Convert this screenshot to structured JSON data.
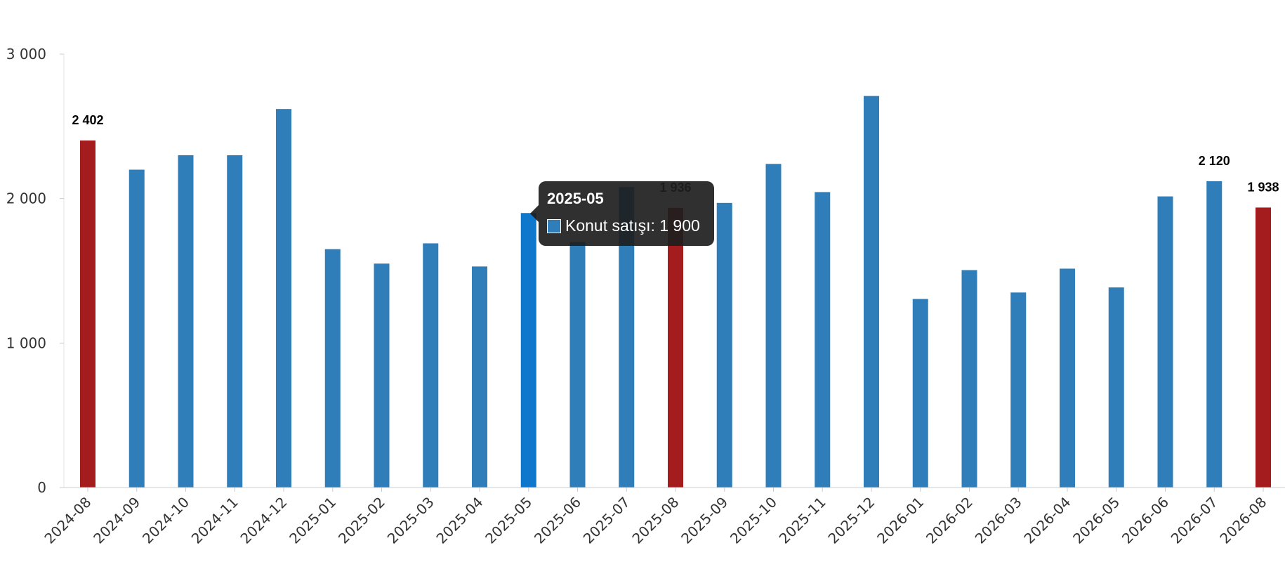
{
  "chart_data": {
    "type": "bar",
    "categories": [
      "2024-08",
      "2024-09",
      "2024-10",
      "2024-11",
      "2024-12",
      "2025-01",
      "2025-02",
      "2025-03",
      "2025-04",
      "2025-05",
      "2025-06",
      "2025-07",
      "2025-08",
      "2025-09",
      "2025-10",
      "2025-11",
      "2025-12",
      "2026-01",
      "2026-02",
      "2026-03",
      "2026-04",
      "2026-05",
      "2026-06",
      "2026-07",
      "2026-08"
    ],
    "series": [
      {
        "name": "Konut satışı",
        "values": [
          2402,
          2200,
          2300,
          2300,
          2620,
          1650,
          1550,
          1690,
          1530,
          1900,
          1700,
          2080,
          1936,
          1970,
          2240,
          2045,
          2710,
          1305,
          1505,
          1350,
          1515,
          1385,
          2015,
          2120,
          1938
        ]
      }
    ],
    "highlighted_categories": [
      "2024-08",
      "2025-08",
      "2026-08"
    ],
    "ylim": [
      0,
      3000
    ],
    "yticks": [
      0,
      1000,
      2000,
      3000
    ],
    "ytick_labels": [
      "0",
      "1 000",
      "2 000",
      "3 000"
    ],
    "data_labels": [
      {
        "category": "2024-08",
        "text": "2 402"
      },
      {
        "category": "2025-08",
        "text": "1 936"
      },
      {
        "category": "2026-07",
        "text": "2 120"
      },
      {
        "category": "2026-08",
        "text": "1 938"
      }
    ],
    "colors": {
      "bar": "#2f7eb9",
      "bar_highlight": "#a51c1e",
      "bar_hover": "#0f78cd"
    },
    "tooltip": {
      "category": "2025-05",
      "title": "2025-05",
      "text": "Konut satışı: 1 900",
      "swatch_color": "#2f7eb9"
    },
    "grid": false,
    "legend": "none"
  }
}
